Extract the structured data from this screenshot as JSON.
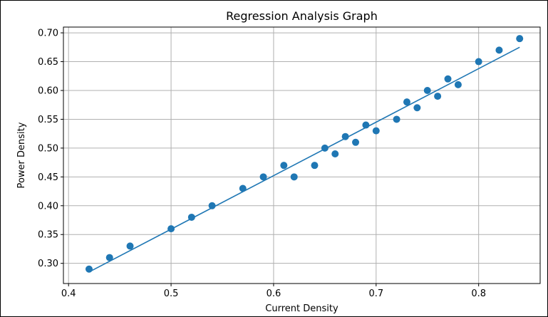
{
  "chart_data": {
    "type": "scatter",
    "title": "Regression Analysis Graph",
    "xlabel": "Current Density",
    "ylabel": "Power Density",
    "xlim": [
      0.395,
      0.86
    ],
    "ylim": [
      0.265,
      0.71
    ],
    "grid": true,
    "x_ticks": [
      0.4,
      0.5,
      0.6,
      0.7,
      0.8
    ],
    "x_tick_labels": [
      "0.4",
      "0.5",
      "0.6",
      "0.7",
      "0.8"
    ],
    "y_ticks": [
      0.3,
      0.35,
      0.4,
      0.45,
      0.5,
      0.55,
      0.6,
      0.65,
      0.7
    ],
    "y_tick_labels": [
      "0.30",
      "0.35",
      "0.40",
      "0.45",
      "0.50",
      "0.55",
      "0.60",
      "0.65",
      "0.70"
    ],
    "point_color": "#1f77b4",
    "line_color": "#1f77b4",
    "points": [
      {
        "x": 0.42,
        "y": 0.29
      },
      {
        "x": 0.44,
        "y": 0.31
      },
      {
        "x": 0.46,
        "y": 0.33
      },
      {
        "x": 0.5,
        "y": 0.36
      },
      {
        "x": 0.52,
        "y": 0.38
      },
      {
        "x": 0.54,
        "y": 0.4
      },
      {
        "x": 0.57,
        "y": 0.43
      },
      {
        "x": 0.59,
        "y": 0.45
      },
      {
        "x": 0.61,
        "y": 0.47
      },
      {
        "x": 0.62,
        "y": 0.45
      },
      {
        "x": 0.64,
        "y": 0.47
      },
      {
        "x": 0.65,
        "y": 0.5
      },
      {
        "x": 0.66,
        "y": 0.49
      },
      {
        "x": 0.67,
        "y": 0.52
      },
      {
        "x": 0.68,
        "y": 0.51
      },
      {
        "x": 0.69,
        "y": 0.54
      },
      {
        "x": 0.7,
        "y": 0.53
      },
      {
        "x": 0.72,
        "y": 0.55
      },
      {
        "x": 0.73,
        "y": 0.58
      },
      {
        "x": 0.74,
        "y": 0.57
      },
      {
        "x": 0.75,
        "y": 0.6
      },
      {
        "x": 0.76,
        "y": 0.59
      },
      {
        "x": 0.77,
        "y": 0.62
      },
      {
        "x": 0.78,
        "y": 0.61
      },
      {
        "x": 0.8,
        "y": 0.65
      },
      {
        "x": 0.82,
        "y": 0.67
      },
      {
        "x": 0.84,
        "y": 0.69
      }
    ],
    "fit_line": {
      "x": [
        0.42,
        0.84
      ],
      "y": [
        0.285,
        0.675
      ]
    }
  }
}
